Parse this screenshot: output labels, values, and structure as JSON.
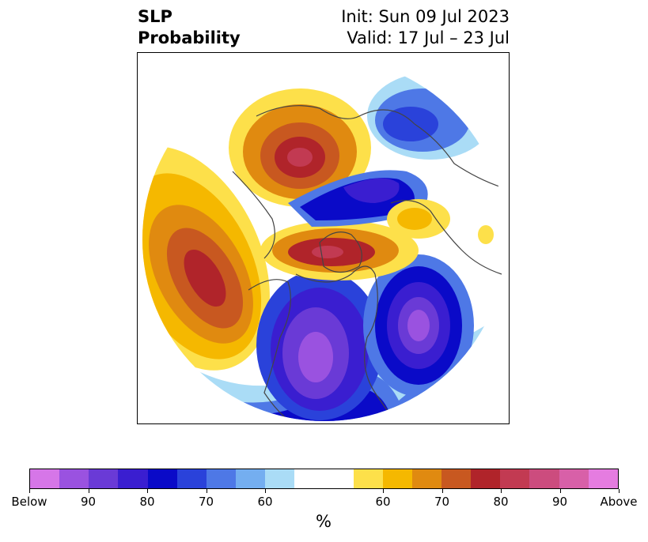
{
  "title": {
    "left_line1": "SLP",
    "left_line2": "Probability",
    "right_line1": "Init: Sun 09 Jul 2023",
    "right_line2": "Valid: 17 Jul – 23 Jul"
  },
  "colorbar": {
    "unit": "%",
    "colors": [
      "#d676e8",
      "#9a52e0",
      "#6a3ad6",
      "#3a1ed0",
      "#0a0ac8",
      "#2a42da",
      "#4e78e6",
      "#74aef0",
      "#aadcf6",
      "#ffffff",
      "#ffffff",
      "#fde04a",
      "#f5b800",
      "#e08a10",
      "#c85820",
      "#b0242a",
      "#c23a52",
      "#cc4c7e",
      "#d860a8",
      "#e57ce0"
    ],
    "ticks": [
      {
        "label": "Below",
        "index": 0
      },
      {
        "label": "90",
        "index": 2
      },
      {
        "label": "80",
        "index": 4
      },
      {
        "label": "70",
        "index": 6
      },
      {
        "label": "60",
        "index": 8
      },
      {
        "label": "60",
        "index": 12
      },
      {
        "label": "70",
        "index": 14
      },
      {
        "label": "80",
        "index": 16
      },
      {
        "label": "90",
        "index": 18
      },
      {
        "label": "Above",
        "index": 20
      }
    ]
  },
  "map": {
    "projection": "north-polar-stereographic",
    "background": "#ffffff",
    "coastline_color": "#444444"
  }
}
